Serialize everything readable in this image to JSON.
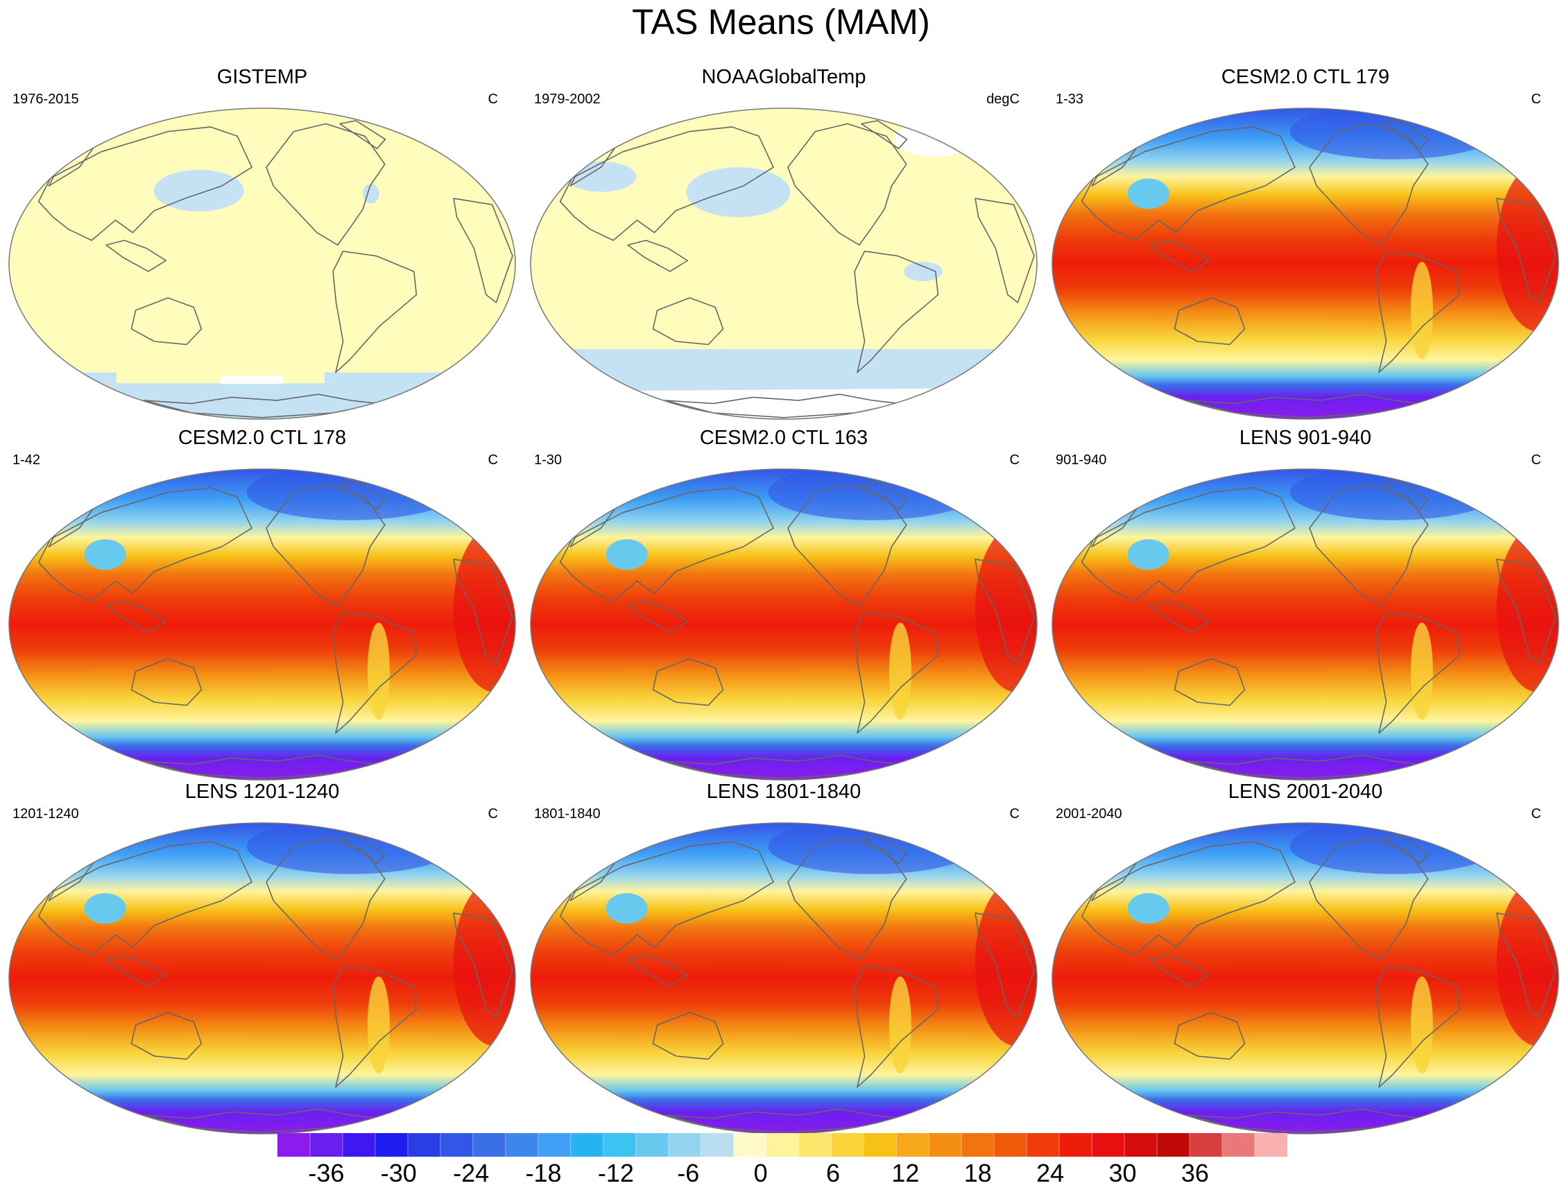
{
  "title": "TAS Means (MAM)",
  "panels": [
    {
      "title": "GISTEMP",
      "period": "1976-2015",
      "units": "C",
      "kind": "obs-gistemp"
    },
    {
      "title": "NOAAGlobalTemp",
      "period": "1979-2002",
      "units": "degC",
      "kind": "obs-noaa"
    },
    {
      "title": "CESM2.0 CTL 179",
      "period": "1-33",
      "units": "C",
      "kind": "model"
    },
    {
      "title": "CESM2.0 CTL 178",
      "period": "1-42",
      "units": "C",
      "kind": "model"
    },
    {
      "title": "CESM2.0 CTL 163",
      "period": "1-30",
      "units": "C",
      "kind": "model"
    },
    {
      "title": "LENS 901-940",
      "period": "901-940",
      "units": "C",
      "kind": "model"
    },
    {
      "title": "LENS 1201-1240",
      "period": "1201-1240",
      "units": "C",
      "kind": "model"
    },
    {
      "title": "LENS 1801-1840",
      "period": "1801-1840",
      "units": "C",
      "kind": "model"
    },
    {
      "title": "LENS 2001-2040",
      "period": "2001-2040",
      "units": "C",
      "kind": "model"
    }
  ],
  "colorbar": {
    "labels": [
      "-36",
      "-30",
      "-24",
      "-18",
      "-12",
      "-6",
      "0",
      "6",
      "12",
      "18",
      "24",
      "30",
      "36"
    ],
    "colors": [
      "#8c1ced",
      "#6a1ff0",
      "#3f17f0",
      "#1c1cf0",
      "#2a3ee6",
      "#3256e6",
      "#3a6fe8",
      "#3d86ee",
      "#3fa0f5",
      "#25b4f0",
      "#3cc3f2",
      "#68c9ef",
      "#95d4ee",
      "#b8def0",
      "#fffac8",
      "#fef49c",
      "#fce66c",
      "#f9d43a",
      "#f7c118",
      "#f6a81a",
      "#f48f14",
      "#f27410",
      "#f0580a",
      "#ee3c0a",
      "#ee1c0a",
      "#e80f0f",
      "#d40c0c",
      "#c00a0a",
      "#d84040",
      "#ea7878",
      "#f8b0b0"
    ]
  }
}
